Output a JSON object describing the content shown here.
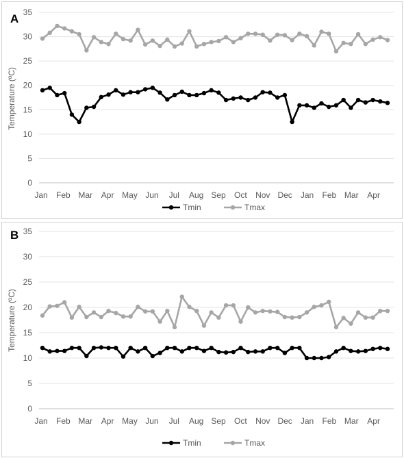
{
  "chart_data": [
    {
      "panel": "A",
      "type": "line",
      "ylabel": "Temperature (ºC)",
      "ylim": [
        0,
        35
      ],
      "yticks": [
        "0",
        "5",
        "10",
        "15",
        "20",
        "25",
        "30",
        "35"
      ],
      "month_labels": [
        "Jan",
        "Feb",
        "Mar",
        "Apr",
        "May",
        "Jun",
        "Jul",
        "Aug",
        "Sep",
        "Oct",
        "Nov",
        "Dec",
        "Jan",
        "Feb",
        "Mar",
        "Apr"
      ],
      "grid": true,
      "legend": "bottom",
      "series": [
        {
          "name": "Tmin",
          "color": "#000000",
          "values": [
            19,
            19.5,
            18,
            18.4,
            14,
            12.5,
            15.4,
            15.6,
            17.6,
            18.1,
            19,
            18.1,
            18.6,
            18.6,
            19.2,
            19.5,
            18.5,
            17.1,
            18,
            18.7,
            18,
            18,
            18.4,
            19,
            18.5,
            17,
            17.3,
            17.5,
            17,
            17.5,
            18.6,
            18.5,
            17.5,
            18,
            12.5,
            15.9,
            15.9,
            15.4,
            16.3,
            15.6,
            15.9,
            17,
            15.4,
            17,
            16.5,
            17,
            16.7,
            16.4
          ]
        },
        {
          "name": "Tmax",
          "color": "#a6a6a6",
          "values": [
            29.6,
            30.8,
            32.2,
            31.7,
            31.1,
            30.5,
            27.2,
            29.9,
            28.9,
            28.5,
            30.6,
            29.5,
            29.2,
            31.4,
            28.4,
            29.2,
            28.1,
            29.4,
            28,
            28.6,
            31.1,
            28,
            28.5,
            28.9,
            29.1,
            29.9,
            28.9,
            29.7,
            30.6,
            30.6,
            30.4,
            29.2,
            30.4,
            30.3,
            29.3,
            30.6,
            30.1,
            28.2,
            31,
            30.6,
            27,
            28.7,
            28.5,
            30.5,
            28.5,
            29.4,
            29.9,
            29.3
          ]
        }
      ]
    },
    {
      "panel": "B",
      "type": "line",
      "ylabel": "Temperature (ºC)",
      "ylim": [
        0,
        35
      ],
      "yticks": [
        "0",
        "5",
        "10",
        "15",
        "20",
        "25",
        "30",
        "35"
      ],
      "month_labels": [
        "Jan",
        "Feb",
        "Mar",
        "Apr",
        "May",
        "Jun",
        "Jul",
        "Aug",
        "Sep",
        "Oct",
        "Nov",
        "Dec",
        "Jan",
        "Feb",
        "Mar",
        "Apr"
      ],
      "grid": true,
      "legend": "bottom",
      "series": [
        {
          "name": "Tmin",
          "color": "#000000",
          "values": [
            12,
            11.3,
            11.4,
            11.4,
            12,
            12,
            10.4,
            12,
            12.1,
            12,
            12,
            10.3,
            12,
            11.3,
            12,
            10.4,
            11,
            12,
            12,
            11.3,
            12,
            12,
            11.4,
            12,
            11.2,
            11.1,
            11.2,
            12,
            11.2,
            11.3,
            11.3,
            12,
            12,
            11,
            12,
            12,
            10,
            10,
            10,
            10.2,
            11.3,
            12,
            11.4,
            11.3,
            11.4,
            11.8,
            12,
            11.8
          ]
        },
        {
          "name": "Tmax",
          "color": "#a6a6a6",
          "values": [
            18.4,
            20.2,
            20.3,
            21,
            18,
            20.1,
            18.1,
            19,
            18.1,
            19.3,
            18.9,
            18.2,
            18.2,
            20.1,
            19.2,
            19.2,
            17.2,
            19.3,
            16.1,
            22.1,
            20.1,
            19.3,
            16.4,
            19,
            18,
            20.4,
            20.4,
            17.2,
            20,
            19,
            19.3,
            19.2,
            19.1,
            18.1,
            18,
            18.1,
            19,
            20.1,
            20.4,
            21.1,
            16.1,
            17.9,
            16.8,
            19,
            18,
            18,
            19.3,
            19.3
          ]
        }
      ]
    }
  ]
}
